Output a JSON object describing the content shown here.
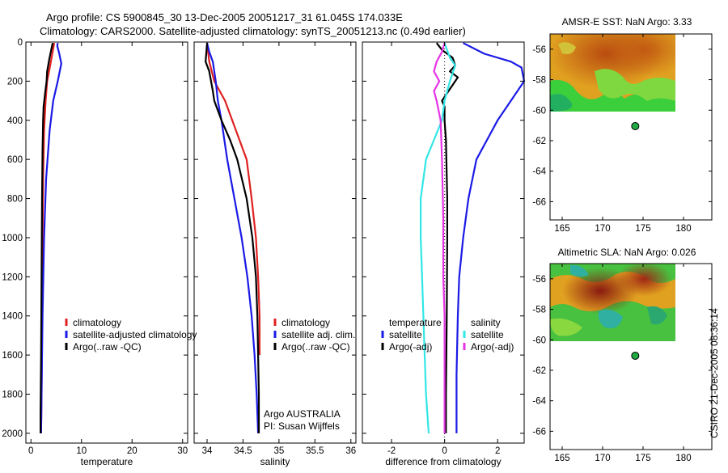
{
  "header": {
    "line1": "Argo profile: CS 5900845_30 13-Dec-2005 20051217_31 61.045S 174.033E",
    "line2": "Climatology: CARS2000. Satellite-adjusted climatology: synTS_20051213.nc (0.49d earlier)"
  },
  "side_label": "CSIRO 21-Dec-2005 08:36:14",
  "colors": {
    "climatology": "#e02020",
    "satellite": "#1a1ae6",
    "argo": "#000000",
    "cyan": "#33e6e6",
    "magenta": "#e633e6",
    "marker": "#22aa44"
  },
  "chart_data": [
    {
      "type": "line",
      "id": "temperature",
      "xlabel": "temperature",
      "ylabel": "",
      "xlim": [
        -1,
        31
      ],
      "ylim": [
        2050,
        0
      ],
      "y_reversed": true,
      "xticks": [
        0,
        10,
        20,
        30
      ],
      "xtick_labels": [
        "0",
        "10",
        "20",
        "30"
      ],
      "yticks": [
        0,
        200,
        400,
        600,
        800,
        1000,
        1200,
        1400,
        1600,
        1800,
        2000
      ],
      "ytick_labels": [
        "0",
        "200",
        "400",
        "600",
        "800",
        "1000",
        "1200",
        "1400",
        "1600",
        "1800",
        "2000"
      ],
      "legend": [
        "climatology",
        "satellite-adjusted climatology",
        "Argo(..raw -QC)"
      ],
      "legend_position": "lower-right",
      "series": [
        {
          "name": "climatology",
          "color": "#e02020",
          "points": [
            [
              4.6,
              5
            ],
            [
              4.3,
              50
            ],
            [
              3.8,
              120
            ],
            [
              3.2,
              200
            ],
            [
              2.9,
              300
            ],
            [
              2.6,
              450
            ],
            [
              2.4,
              700
            ],
            [
              2.3,
              1000
            ],
            [
              2.2,
              1400
            ],
            [
              2.1,
              1800
            ],
            [
              2.0,
              2000
            ]
          ]
        },
        {
          "name": "satellite-adjusted climatology",
          "color": "#1a1ae6",
          "points": [
            [
              5.3,
              5
            ],
            [
              5.2,
              20
            ],
            [
              5.6,
              60
            ],
            [
              6.0,
              110
            ],
            [
              5.3,
              200
            ],
            [
              4.4,
              300
            ],
            [
              3.7,
              450
            ],
            [
              3.0,
              700
            ],
            [
              2.6,
              1000
            ],
            [
              2.3,
              1400
            ],
            [
              2.1,
              1800
            ],
            [
              2.0,
              2000
            ]
          ]
        },
        {
          "name": "Argo(..raw -QC)",
          "color": "#000000",
          "points": [
            [
              4.3,
              5
            ],
            [
              4.0,
              40
            ],
            [
              3.6,
              90
            ],
            [
              3.2,
              150
            ],
            [
              3.1,
              200
            ],
            [
              2.8,
              260
            ],
            [
              2.5,
              330
            ],
            [
              2.4,
              400
            ],
            [
              2.3,
              550
            ],
            [
              2.2,
              800
            ],
            [
              2.1,
              1200
            ],
            [
              2.0,
              1600
            ],
            [
              1.9,
              1900
            ],
            [
              1.9,
              2000
            ]
          ]
        }
      ]
    },
    {
      "type": "line",
      "id": "salinity",
      "xlabel": "salinity",
      "ylabel": "",
      "xlim": [
        33.82,
        36.07
      ],
      "ylim": [
        2050,
        0
      ],
      "y_reversed": true,
      "xticks": [
        34,
        34.5,
        35,
        35.5,
        36
      ],
      "xtick_labels": [
        "34",
        "34.5",
        "35",
        "35.5",
        "36"
      ],
      "legend": [
        "climatology",
        "satellite adj. clim.",
        "Argo(..raw -QC)"
      ],
      "legend_position": "lower-right",
      "annotations": [
        "Argo AUSTRALIA",
        "PI: Susan Wijffels"
      ],
      "series": [
        {
          "name": "climatology",
          "color": "#e02020",
          "points": [
            [
              34.0,
              5
            ],
            [
              34.03,
              100
            ],
            [
              34.1,
              200
            ],
            [
              34.25,
              300
            ],
            [
              34.35,
              400
            ],
            [
              34.45,
              500
            ],
            [
              34.55,
              600
            ],
            [
              34.62,
              800
            ],
            [
              34.68,
              1000
            ],
            [
              34.71,
              1200
            ],
            [
              34.73,
              1400
            ],
            [
              34.73,
              1600
            ]
          ]
        },
        {
          "name": "satellite adj. clim.",
          "color": "#1a1ae6",
          "points": [
            [
              34.0,
              5
            ],
            [
              34.03,
              50
            ],
            [
              34.08,
              100
            ],
            [
              34.12,
              200
            ],
            [
              34.15,
              300
            ],
            [
              34.2,
              400
            ],
            [
              34.28,
              600
            ],
            [
              34.38,
              800
            ],
            [
              34.48,
              1000
            ],
            [
              34.56,
              1200
            ],
            [
              34.62,
              1400
            ],
            [
              34.66,
              1600
            ],
            [
              34.69,
              1800
            ],
            [
              34.71,
              2000
            ]
          ]
        },
        {
          "name": "Argo(..raw -QC)",
          "color": "#000000",
          "points": [
            [
              34.0,
              5
            ],
            [
              33.98,
              100
            ],
            [
              34.03,
              150
            ],
            [
              34.08,
              250
            ],
            [
              34.1,
              300
            ],
            [
              34.2,
              400
            ],
            [
              34.32,
              500
            ],
            [
              34.42,
              600
            ],
            [
              34.55,
              800
            ],
            [
              34.63,
              1000
            ],
            [
              34.68,
              1200
            ],
            [
              34.7,
              1400
            ],
            [
              34.71,
              1600
            ],
            [
              34.72,
              1800
            ],
            [
              34.72,
              2000
            ]
          ]
        }
      ]
    },
    {
      "type": "line",
      "id": "difference",
      "xlabel": "difference from climatology",
      "ylabel": "",
      "xlim": [
        -3.1,
        3.0
      ],
      "ylim": [
        2050,
        0
      ],
      "y_reversed": true,
      "xticks": [
        -2,
        0,
        2
      ],
      "xtick_labels": [
        "-2",
        "0",
        "2"
      ],
      "legend_headers": [
        "temperature",
        "salinity"
      ],
      "legend": [
        "satellite",
        "Argo(-adj)",
        "satellite",
        "Argo(-adj)"
      ],
      "legend_position": "lower-center",
      "series": [
        {
          "name": "satellite",
          "group": "temperature",
          "color": "#1a1ae6",
          "points": [
            [
              0.7,
              5
            ],
            [
              1.5,
              60
            ],
            [
              2.5,
              100
            ],
            [
              2.9,
              130
            ],
            [
              3.0,
              200
            ],
            [
              2.5,
              300
            ],
            [
              2.0,
              400
            ],
            [
              1.6,
              500
            ],
            [
              1.2,
              600
            ],
            [
              0.9,
              800
            ],
            [
              0.7,
              1000
            ],
            [
              0.55,
              1200
            ],
            [
              0.5,
              1400
            ],
            [
              0.45,
              1700
            ],
            [
              0.45,
              2000
            ]
          ]
        },
        {
          "name": "Argo(-adj)",
          "group": "temperature",
          "color": "#000000",
          "points": [
            [
              -0.3,
              5
            ],
            [
              -0.1,
              40
            ],
            [
              0.3,
              80
            ],
            [
              0.4,
              120
            ],
            [
              0.2,
              150
            ],
            [
              0.5,
              180
            ],
            [
              0.3,
              220
            ],
            [
              0.1,
              260
            ],
            [
              -0.1,
              300
            ],
            [
              0.0,
              330
            ],
            [
              0.0,
              400
            ],
            [
              0.05,
              500
            ],
            [
              0.1,
              800
            ],
            [
              0.1,
              1000
            ],
            [
              0.08,
              1400
            ],
            [
              0.05,
              1800
            ],
            [
              0.05,
              2000
            ]
          ]
        },
        {
          "name": "satellite",
          "group": "salinity",
          "color": "#33e6e6",
          "points": [
            [
              0.0,
              5
            ],
            [
              0.2,
              80
            ],
            [
              0.4,
              120
            ],
            [
              0.2,
              200
            ],
            [
              0.0,
              300
            ],
            [
              -0.1,
              400
            ],
            [
              -0.4,
              500
            ],
            [
              -0.7,
              600
            ],
            [
              -0.9,
              800
            ],
            [
              -0.9,
              1000
            ],
            [
              -0.85,
              1200
            ],
            [
              -0.8,
              1400
            ],
            [
              -0.75,
              1600
            ],
            [
              -0.7,
              1800
            ],
            [
              -0.6,
              2000
            ]
          ]
        },
        {
          "name": "Argo(-adj)",
          "group": "salinity",
          "color": "#e633e6",
          "points": [
            [
              0.0,
              5
            ],
            [
              -0.1,
              50
            ],
            [
              -0.3,
              100
            ],
            [
              -0.4,
              150
            ],
            [
              -0.2,
              200
            ],
            [
              -0.4,
              250
            ],
            [
              -0.3,
              300
            ],
            [
              -0.15,
              400
            ],
            [
              -0.1,
              600
            ],
            [
              -0.05,
              900
            ],
            [
              -0.05,
              1200
            ],
            [
              0.0,
              1400
            ],
            [
              0.0,
              1600
            ],
            [
              0.0,
              1800
            ],
            [
              0.0,
              2000
            ]
          ]
        }
      ]
    },
    {
      "type": "heatmap",
      "id": "sst",
      "title": "AMSR-E SST: NaN Argo: 3.33",
      "xlim": [
        163.5,
        183.5
      ],
      "ylim": [
        -67.2,
        -55.0
      ],
      "xticks": [
        165,
        170,
        175,
        180
      ],
      "xtick_labels": [
        "165",
        "170",
        "175",
        "180"
      ],
      "yticks": [
        -56,
        -58,
        -60,
        -62,
        -64,
        -66
      ],
      "ytick_labels": [
        "-56",
        "-58",
        "-60",
        "-62",
        "-64",
        "-66"
      ],
      "extent": {
        "lon": [
          163.5,
          180
        ],
        "lat": [
          -60.3,
          -55.0
        ]
      },
      "argo_position": {
        "lon": 174.033,
        "lat": -61.045
      }
    },
    {
      "type": "heatmap",
      "id": "sla",
      "title": "Altimetric SLA: NaN Argo: 0.026",
      "xlim": [
        163.5,
        183.5
      ],
      "ylim": [
        -67.2,
        -55.0
      ],
      "xticks": [
        165,
        170,
        175,
        180
      ],
      "xtick_labels": [
        "165",
        "170",
        "175",
        "180"
      ],
      "yticks": [
        -56,
        -58,
        -60,
        -62,
        -64,
        -66
      ],
      "ytick_labels": [
        "-56",
        "-58",
        "-60",
        "-62",
        "-64",
        "-66"
      ],
      "extent": {
        "lon": [
          163.5,
          180
        ],
        "lat": [
          -60.3,
          -55.0
        ]
      },
      "argo_position": {
        "lon": 174.033,
        "lat": -61.045
      }
    }
  ]
}
